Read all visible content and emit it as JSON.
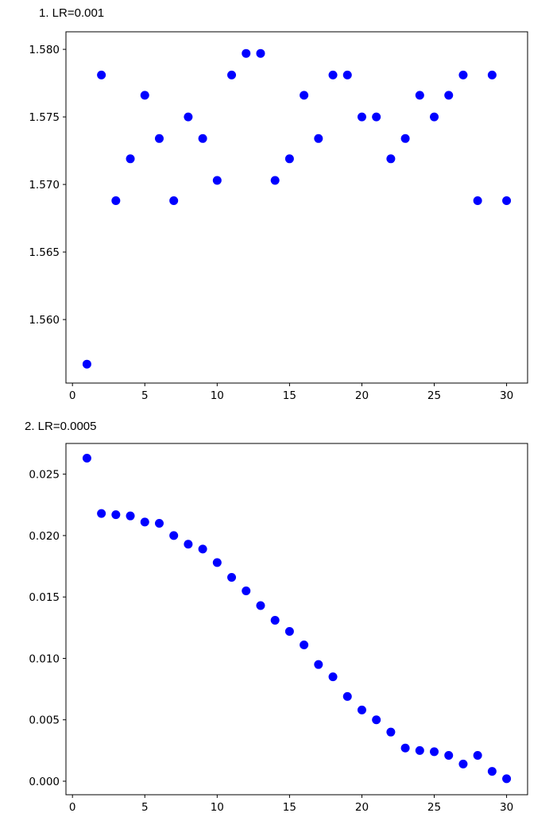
{
  "captions": [
    "1. LR=0.001",
    "2. LR=0.0005"
  ],
  "marker_color": "#0000ff",
  "chart_data": [
    {
      "type": "scatter",
      "title": "",
      "xlabel": "",
      "ylabel": "",
      "xlim": [
        -0.45,
        31.45
      ],
      "ylim": [
        1.5553,
        1.5813
      ],
      "xticks": [
        0,
        5,
        10,
        15,
        20,
        25,
        30
      ],
      "xtick_labels": [
        "0",
        "5",
        "10",
        "15",
        "20",
        "25",
        "30"
      ],
      "yticks": [
        1.56,
        1.565,
        1.57,
        1.575,
        1.58
      ],
      "ytick_labels": [
        "1.560",
        "1.565",
        "1.570",
        "1.575",
        "1.580"
      ],
      "grid": false,
      "x": [
        1,
        2,
        3,
        4,
        5,
        6,
        7,
        8,
        9,
        10,
        11,
        12,
        13,
        14,
        15,
        16,
        17,
        18,
        19,
        20,
        21,
        22,
        23,
        24,
        25,
        26,
        27,
        28,
        29,
        30
      ],
      "y": [
        1.5567,
        1.5781,
        1.5688,
        1.5719,
        1.5766,
        1.5734,
        1.5688,
        1.575,
        1.5734,
        1.5703,
        1.5781,
        1.5797,
        1.5797,
        1.5703,
        1.5719,
        1.5766,
        1.5734,
        1.5781,
        1.5781,
        1.575,
        1.575,
        1.5719,
        1.5734,
        1.5766,
        1.575,
        1.5766,
        1.5781,
        1.5688,
        1.5781,
        1.5688
      ]
    },
    {
      "type": "scatter",
      "title": "",
      "xlabel": "",
      "ylabel": "",
      "xlim": [
        -0.45,
        31.45
      ],
      "ylim": [
        -0.0011,
        0.0275
      ],
      "xticks": [
        0,
        5,
        10,
        15,
        20,
        25,
        30
      ],
      "xtick_labels": [
        "0",
        "5",
        "10",
        "15",
        "20",
        "25",
        "30"
      ],
      "yticks": [
        0.0,
        0.005,
        0.01,
        0.015,
        0.02,
        0.025
      ],
      "ytick_labels": [
        "0.000",
        "0.005",
        "0.010",
        "0.015",
        "0.020",
        "0.025"
      ],
      "grid": false,
      "x": [
        1,
        2,
        3,
        4,
        5,
        6,
        7,
        8,
        9,
        10,
        11,
        12,
        13,
        14,
        15,
        16,
        17,
        18,
        19,
        20,
        21,
        22,
        23,
        24,
        25,
        26,
        27,
        28,
        29,
        30
      ],
      "y": [
        0.0263,
        0.0218,
        0.0217,
        0.0216,
        0.0211,
        0.021,
        0.02,
        0.0193,
        0.0189,
        0.0178,
        0.0166,
        0.0155,
        0.0143,
        0.0131,
        0.0122,
        0.0111,
        0.0095,
        0.0085,
        0.0069,
        0.0058,
        0.005,
        0.004,
        0.0027,
        0.0025,
        0.0024,
        0.0021,
        0.0014,
        0.0021,
        0.0008,
        0.0002
      ]
    }
  ]
}
